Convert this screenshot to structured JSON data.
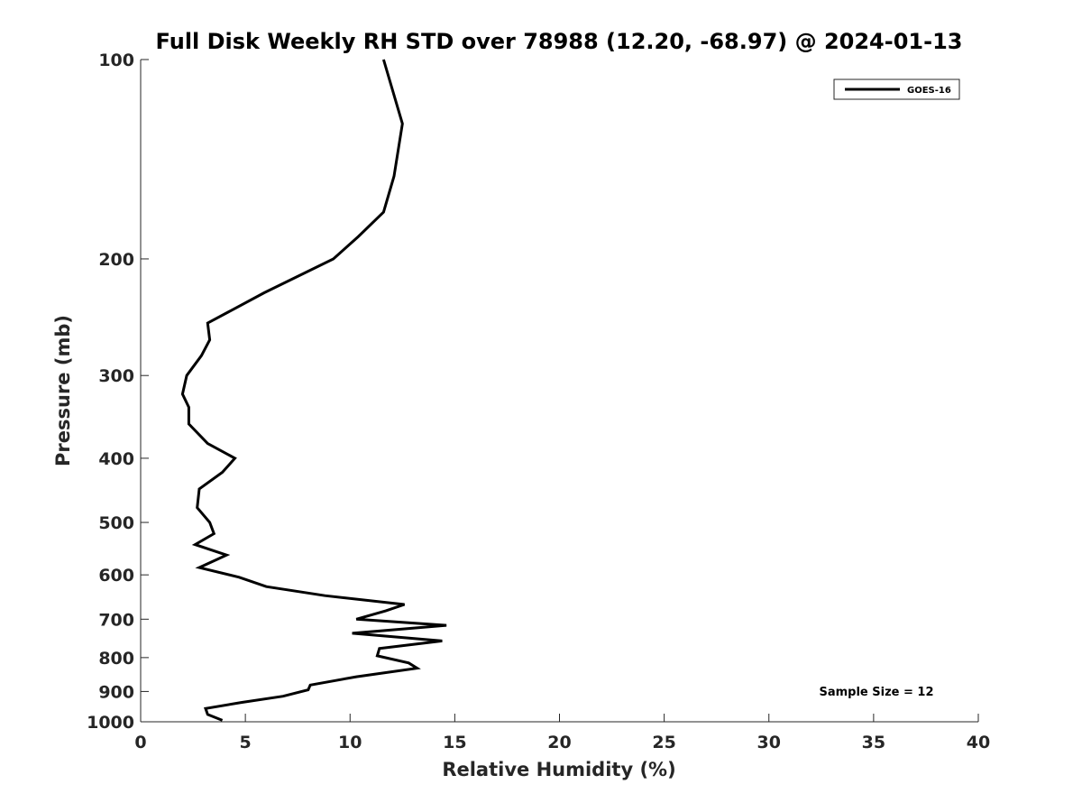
{
  "chart_data": {
    "type": "line",
    "title": "Full Disk Weekly RH STD over 78988 (12.20, -68.97) @ 2024-01-13",
    "xlabel": "Relative Humidity (%)",
    "ylabel": "Pressure (mb)",
    "xlim": [
      0,
      40
    ],
    "ylim": [
      100,
      1000
    ],
    "y_scale": "log",
    "y_reversed": true,
    "grid": false,
    "legend_position": "top-right",
    "xticks": [
      0,
      5,
      10,
      15,
      20,
      25,
      30,
      35,
      40
    ],
    "yticks": [
      100,
      200,
      300,
      400,
      500,
      600,
      700,
      800,
      900,
      1000
    ],
    "series": [
      {
        "name": "GOES-16",
        "color": "#000000",
        "points": [
          [
            11.6,
            100
          ],
          [
            12.5,
            125
          ],
          [
            12.1,
            150
          ],
          [
            11.6,
            170
          ],
          [
            10.4,
            185
          ],
          [
            9.2,
            200
          ],
          [
            5.9,
            225
          ],
          [
            3.2,
            250
          ],
          [
            3.3,
            265
          ],
          [
            2.9,
            280
          ],
          [
            2.2,
            300
          ],
          [
            2.0,
            320
          ],
          [
            2.3,
            335
          ],
          [
            2.3,
            355
          ],
          [
            3.2,
            380
          ],
          [
            4.5,
            400
          ],
          [
            3.9,
            420
          ],
          [
            2.8,
            445
          ],
          [
            2.7,
            475
          ],
          [
            3.3,
            500
          ],
          [
            3.5,
            520
          ],
          [
            2.6,
            540
          ],
          [
            4.1,
            560
          ],
          [
            2.8,
            585
          ],
          [
            4.7,
            605
          ],
          [
            6.0,
            625
          ],
          [
            8.8,
            645
          ],
          [
            12.6,
            665
          ],
          [
            11.7,
            680
          ],
          [
            10.3,
            700
          ],
          [
            14.6,
            715
          ],
          [
            10.1,
            735
          ],
          [
            14.4,
            755
          ],
          [
            11.4,
            775
          ],
          [
            11.3,
            795
          ],
          [
            12.8,
            815
          ],
          [
            13.2,
            830
          ],
          [
            10.3,
            855
          ],
          [
            8.1,
            880
          ],
          [
            8.0,
            895
          ],
          [
            6.8,
            915
          ],
          [
            4.8,
            935
          ],
          [
            3.1,
            955
          ],
          [
            3.2,
            975
          ],
          [
            3.9,
            995
          ]
        ]
      }
    ],
    "annotation": "Sample Size = 12"
  }
}
